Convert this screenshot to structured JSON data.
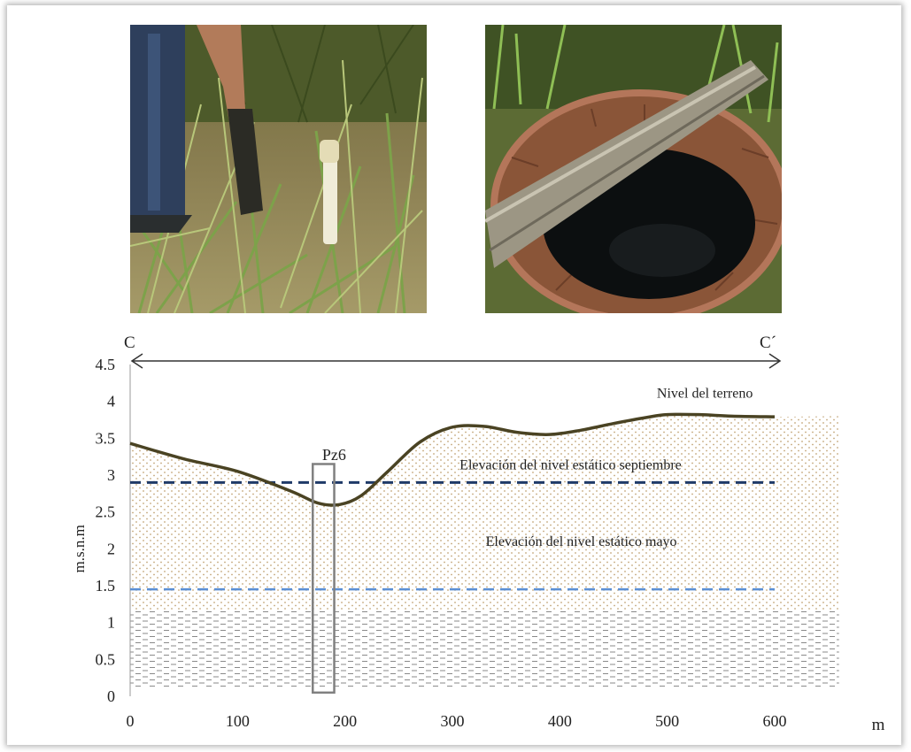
{
  "photos": [
    {
      "name": "piezometer-photo"
    },
    {
      "name": "well-photo"
    }
  ],
  "section": {
    "start_label": "C",
    "end_label": "C´"
  },
  "colors": {
    "terrain": "#4a4323",
    "level_sep": "#1f3a68",
    "level_may": "#5b8fd4",
    "pz": "#808080",
    "sand": "#d8c49a",
    "clay": "#8a8a8a"
  },
  "chart_data": {
    "type": "line",
    "xlabel": "m",
    "ylabel": "m.s.n.m",
    "xlim": [
      0,
      600
    ],
    "ylim": [
      0,
      4.5
    ],
    "x_ticks": [
      "0",
      "100",
      "200",
      "300",
      "400",
      "500",
      "600"
    ],
    "y_ticks": [
      "0",
      "0.5",
      "1",
      "1.5",
      "2",
      "2.5",
      "3",
      "3.5",
      "4",
      "4.5"
    ],
    "series": [
      {
        "name": "Nivel del terreno",
        "x": [
          0,
          50,
          100,
          150,
          175,
          195,
          215,
          240,
          270,
          300,
          330,
          360,
          390,
          420,
          450,
          480,
          500,
          530,
          560,
          600
        ],
        "y": [
          3.43,
          3.22,
          3.05,
          2.78,
          2.62,
          2.6,
          2.72,
          3.05,
          3.45,
          3.65,
          3.66,
          3.58,
          3.55,
          3.61,
          3.7,
          3.78,
          3.82,
          3.82,
          3.8,
          3.79
        ]
      },
      {
        "name": "Elevación del nivel estático septiembre",
        "x": [
          0,
          600
        ],
        "y": [
          2.9,
          2.9
        ]
      },
      {
        "name": "Elevación del nivel estático mayo",
        "x": [
          0,
          600
        ],
        "y": [
          1.45,
          1.45
        ]
      }
    ],
    "annotations": [
      {
        "text": "Pz6",
        "x": 180,
        "y": 3.25
      }
    ],
    "piezometer": {
      "label": "Pz6",
      "x_range": [
        170,
        190
      ],
      "y_range": [
        0.05,
        3.15
      ]
    },
    "grid": false
  }
}
